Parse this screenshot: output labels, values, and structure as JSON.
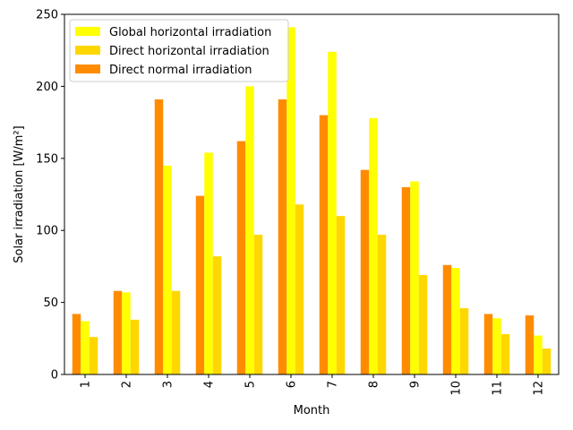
{
  "chart_data": {
    "type": "bar",
    "categories": [
      "1",
      "2",
      "3",
      "4",
      "5",
      "6",
      "7",
      "8",
      "9",
      "10",
      "11",
      "12"
    ],
    "series": [
      {
        "name": "Direct normal irradiation",
        "color": "#ff8c00",
        "values": [
          42,
          58,
          191,
          124,
          162,
          191,
          180,
          142,
          130,
          76,
          42,
          41
        ]
      },
      {
        "name": "Global horizontal irradiation",
        "color": "#ffff00",
        "values": [
          37,
          57,
          145,
          154,
          200,
          241,
          224,
          178,
          134,
          74,
          39,
          27
        ]
      },
      {
        "name": "Direct horizontal irradiation",
        "color": "#ffd700",
        "values": [
          26,
          38,
          58,
          82,
          97,
          118,
          110,
          97,
          69,
          46,
          28,
          18
        ]
      }
    ],
    "legend_order": [
      "Global horizontal irradiation",
      "Direct horizontal irradiation",
      "Direct normal irradiation"
    ],
    "legend_position": "top-left",
    "xlabel": "Month",
    "ylabel": "Solar irradiation [W/m²]",
    "ylim": [
      0,
      250
    ],
    "yticks": [
      0,
      50,
      100,
      150,
      200,
      250
    ],
    "grid": false
  }
}
